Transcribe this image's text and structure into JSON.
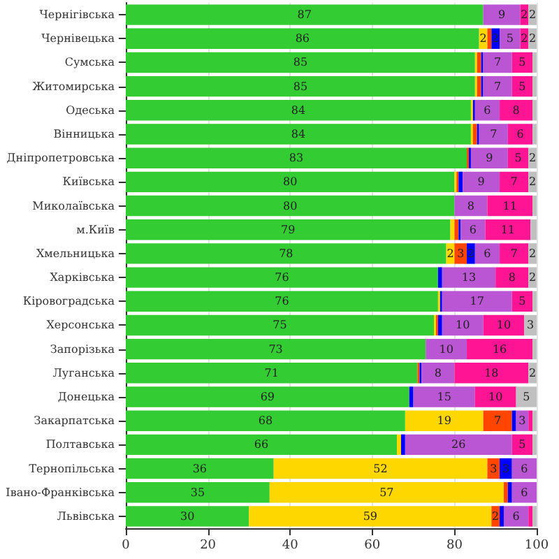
{
  "chart_data": {
    "type": "bar",
    "orientation": "horizontal",
    "stacked": true,
    "grid": "x",
    "categories": [
      "Чернігівська",
      "Чернівецька",
      "Сумська",
      "Житомирська",
      "Одеська",
      "Вінницька",
      "Дніпропетровська",
      "Київська",
      "Миколаївська",
      "м.Київ",
      "Хмельницька",
      "Харківська",
      "Кіровоградська",
      "Херсонська",
      "Запорізька",
      "Луганська",
      "Донецька",
      "Закарпатська",
      "Полтавська",
      "Тернопільська",
      "Івано-Франківська",
      "Львівська"
    ],
    "xlim": [
      0,
      100
    ],
    "xticks": [
      0,
      20,
      40,
      60,
      80,
      100
    ],
    "series": [
      {
        "color": "#33cc33",
        "values": [
          87,
          86,
          85,
          85,
          84,
          84,
          83,
          80,
          80,
          79,
          78,
          76,
          76,
          75,
          73,
          71,
          69,
          68,
          66,
          36,
          35,
          30
        ],
        "value_labels": [
          "87",
          "86",
          "85",
          "85",
          "84",
          "84",
          "83",
          "80",
          "80",
          "79",
          "78",
          "76",
          "76",
          "75",
          "73",
          "71",
          "69",
          "68",
          "66",
          "36",
          "35",
          "30"
        ]
      },
      {
        "color": "#ffd700",
        "values": [
          0,
          2,
          0.5,
          0.5,
          0.5,
          0.5,
          0,
          0.5,
          0,
          1,
          2,
          0,
          0.5,
          0.5,
          0,
          0,
          0,
          19,
          1,
          52,
          57,
          59
        ],
        "value_labels": [
          null,
          "2",
          null,
          null,
          null,
          null,
          null,
          null,
          null,
          null,
          "2",
          null,
          null,
          null,
          null,
          null,
          null,
          "19",
          null,
          "52",
          "57",
          "59"
        ]
      },
      {
        "color": "#ff4500",
        "values": [
          0,
          1,
          1,
          1,
          0,
          1,
          0.5,
          0.5,
          0,
          1,
          3,
          0,
          0,
          0.5,
          0,
          0.5,
          0,
          7,
          0,
          3,
          1,
          2
        ],
        "value_labels": [
          null,
          null,
          null,
          null,
          null,
          null,
          null,
          null,
          null,
          null,
          "3",
          null,
          null,
          null,
          null,
          null,
          null,
          "7",
          null,
          "3",
          null,
          "2"
        ]
      },
      {
        "color": "#0000ff",
        "values": [
          0,
          2,
          0.5,
          0.5,
          0.5,
          0.5,
          0.5,
          1,
          0,
          0.5,
          2,
          1,
          0.5,
          1,
          0,
          0.5,
          1,
          1,
          1,
          3,
          1,
          1
        ],
        "value_labels": [
          null,
          "2",
          null,
          null,
          null,
          null,
          null,
          null,
          null,
          null,
          "2",
          null,
          null,
          null,
          null,
          null,
          null,
          null,
          null,
          "3",
          null,
          null
        ]
      },
      {
        "color": "#ba55d3",
        "values": [
          9,
          5,
          7,
          7,
          6,
          7,
          9,
          9,
          8,
          6,
          6,
          13,
          17,
          10,
          10,
          8,
          15,
          3,
          26,
          6,
          6,
          6
        ],
        "value_labels": [
          "9",
          "5",
          "7",
          "7",
          "6",
          "7",
          "9",
          "9",
          "8",
          "6",
          "6",
          "13",
          "17",
          "10",
          "10",
          "8",
          "15",
          "3",
          "26",
          "6",
          "6",
          "6"
        ]
      },
      {
        "color": "#ff1493",
        "values": [
          2,
          2,
          5,
          5,
          8,
          6,
          5,
          7,
          11,
          11,
          7,
          8,
          5,
          10,
          16,
          18,
          10,
          1,
          5,
          0,
          0,
          1
        ],
        "value_labels": [
          "2",
          "2",
          "5",
          "5",
          "8",
          "6",
          "5",
          "7",
          "11",
          "11",
          "7",
          "8",
          "5",
          "10",
          "16",
          "18",
          "10",
          null,
          "5",
          null,
          null,
          null
        ]
      },
      {
        "color": "#c0c0c0",
        "values": [
          2,
          2,
          1,
          1,
          1,
          1,
          2,
          2,
          1,
          1.5,
          2,
          2,
          1,
          3,
          1,
          2,
          5,
          1,
          1,
          0,
          0,
          1
        ],
        "value_labels": [
          "2",
          "2",
          null,
          null,
          null,
          null,
          "2",
          "2",
          null,
          null,
          "2",
          "2",
          null,
          "3",
          null,
          "2",
          "5",
          null,
          null,
          null,
          null,
          null
        ]
      }
    ]
  }
}
